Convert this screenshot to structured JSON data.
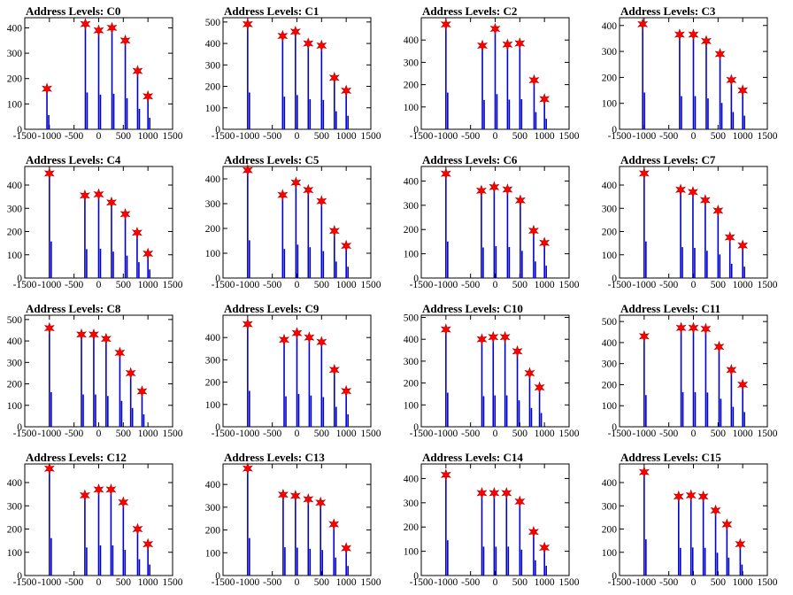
{
  "chart_data": [
    {
      "type": "bar",
      "title": "Address Levels: C0",
      "xlim": [
        -1500,
        1500
      ],
      "ylim": [
        0,
        440
      ],
      "xticks": [
        -1500,
        -1000,
        -500,
        0,
        500,
        1000,
        1500
      ],
      "yticks": [
        0,
        100,
        200,
        300,
        400
      ],
      "tick_labels_x": [
        "-1500",
        "-1000",
        "-500",
        "0",
        "500",
        "1000",
        "1500"
      ],
      "tick_labels_y": [
        "0",
        "100",
        "200",
        "300",
        "400"
      ],
      "peaks": [
        {
          "x": -1050,
          "y": 160
        },
        {
          "x": -270,
          "y": 415
        },
        {
          "x": 0,
          "y": 390
        },
        {
          "x": 270,
          "y": 400
        },
        {
          "x": 540,
          "y": 350
        },
        {
          "x": 790,
          "y": 230
        },
        {
          "x": 1000,
          "y": 130
        }
      ]
    },
    {
      "type": "bar",
      "title": "Address Levels: C1",
      "xlim": [
        -1500,
        1500
      ],
      "ylim": [
        0,
        520
      ],
      "xticks": [
        -1500,
        -1000,
        -500,
        0,
        500,
        1000,
        1500
      ],
      "yticks": [
        0,
        100,
        200,
        300,
        400,
        500
      ],
      "tick_labels_x": [
        "-1500",
        "-1000",
        "-500",
        "0",
        "500",
        "1000",
        "1500"
      ],
      "tick_labels_y": [
        "0",
        "100",
        "200",
        "300",
        "400",
        "500"
      ],
      "peaks": [
        {
          "x": -1000,
          "y": 490
        },
        {
          "x": -290,
          "y": 435
        },
        {
          "x": -30,
          "y": 455
        },
        {
          "x": 230,
          "y": 400
        },
        {
          "x": 500,
          "y": 390
        },
        {
          "x": 760,
          "y": 240
        },
        {
          "x": 1000,
          "y": 180
        }
      ]
    },
    {
      "type": "bar",
      "title": "Address Levels: C2",
      "xlim": [
        -1500,
        1500
      ],
      "ylim": [
        0,
        500
      ],
      "xticks": [
        -1500,
        -1000,
        -500,
        0,
        500,
        1000,
        1500
      ],
      "yticks": [
        0,
        100,
        200,
        300,
        400
      ],
      "tick_labels_x": [
        "-1500",
        "-1000",
        "-500",
        "0",
        "500",
        "1000",
        "1500"
      ],
      "tick_labels_y": [
        "0",
        "100",
        "200",
        "300",
        "400"
      ],
      "peaks": [
        {
          "x": -1000,
          "y": 470
        },
        {
          "x": -260,
          "y": 375
        },
        {
          "x": 0,
          "y": 450
        },
        {
          "x": 250,
          "y": 380
        },
        {
          "x": 500,
          "y": 385
        },
        {
          "x": 790,
          "y": 220
        },
        {
          "x": 1000,
          "y": 135
        }
      ]
    },
    {
      "type": "bar",
      "title": "Address Levels: C3",
      "xlim": [
        -1500,
        1500
      ],
      "ylim": [
        0,
        430
      ],
      "xticks": [
        -1500,
        -1000,
        -500,
        0,
        500,
        1000,
        1500
      ],
      "yticks": [
        0,
        100,
        200,
        300,
        400
      ],
      "tick_labels_x": [
        "-1500",
        "-1000",
        "-500",
        "0",
        "500",
        "1000",
        "1500"
      ],
      "tick_labels_y": [
        "0",
        "100",
        "200",
        "300",
        "400"
      ],
      "peaks": [
        {
          "x": -1030,
          "y": 405
        },
        {
          "x": -280,
          "y": 365
        },
        {
          "x": 0,
          "y": 365
        },
        {
          "x": 260,
          "y": 340
        },
        {
          "x": 540,
          "y": 290
        },
        {
          "x": 770,
          "y": 190
        },
        {
          "x": 1000,
          "y": 150
        }
      ]
    },
    {
      "type": "bar",
      "title": "Address Levels: C4",
      "xlim": [
        -1500,
        1500
      ],
      "ylim": [
        0,
        480
      ],
      "xticks": [
        -1500,
        -1000,
        -500,
        0,
        500,
        1000,
        1500
      ],
      "yticks": [
        0,
        100,
        200,
        300,
        400
      ],
      "tick_labels_x": [
        "-1500",
        "-1000",
        "-500",
        "0",
        "500",
        "1000",
        "1500"
      ],
      "tick_labels_y": [
        "0",
        "100",
        "200",
        "300",
        "400"
      ],
      "peaks": [
        {
          "x": -1000,
          "y": 450
        },
        {
          "x": -280,
          "y": 355
        },
        {
          "x": 0,
          "y": 360
        },
        {
          "x": 260,
          "y": 325
        },
        {
          "x": 540,
          "y": 275
        },
        {
          "x": 780,
          "y": 195
        },
        {
          "x": 1000,
          "y": 105
        }
      ]
    },
    {
      "type": "bar",
      "title": "Address Levels: C5",
      "xlim": [
        -1500,
        1500
      ],
      "ylim": [
        0,
        450
      ],
      "xticks": [
        -1500,
        -1000,
        -500,
        0,
        500,
        1000,
        1500
      ],
      "yticks": [
        0,
        100,
        200,
        300,
        400
      ],
      "tick_labels_x": [
        "-1500",
        "-1000",
        "-500",
        "0",
        "500",
        "1000",
        "1500"
      ],
      "tick_labels_y": [
        "0",
        "100",
        "200",
        "300",
        "400"
      ],
      "peaks": [
        {
          "x": -1000,
          "y": 435
        },
        {
          "x": -290,
          "y": 335
        },
        {
          "x": -20,
          "y": 385
        },
        {
          "x": 230,
          "y": 355
        },
        {
          "x": 500,
          "y": 310
        },
        {
          "x": 760,
          "y": 190
        },
        {
          "x": 1000,
          "y": 130
        }
      ]
    },
    {
      "type": "bar",
      "title": "Address Levels: C6",
      "xlim": [
        -1500,
        1500
      ],
      "ylim": [
        0,
        460
      ],
      "xticks": [
        -1500,
        -1000,
        -500,
        0,
        500,
        1000,
        1500
      ],
      "yticks": [
        0,
        100,
        200,
        300,
        400
      ],
      "tick_labels_x": [
        "-1500",
        "-1000",
        "-500",
        "0",
        "500",
        "1000",
        "1500"
      ],
      "tick_labels_y": [
        "0",
        "100",
        "200",
        "300",
        "400"
      ],
      "peaks": [
        {
          "x": -1000,
          "y": 430
        },
        {
          "x": -280,
          "y": 360
        },
        {
          "x": -20,
          "y": 375
        },
        {
          "x": 250,
          "y": 365
        },
        {
          "x": 510,
          "y": 320
        },
        {
          "x": 780,
          "y": 195
        },
        {
          "x": 1000,
          "y": 145
        }
      ]
    },
    {
      "type": "bar",
      "title": "Address Levels: C7",
      "xlim": [
        -1500,
        1500
      ],
      "ylim": [
        0,
        480
      ],
      "xticks": [
        -1500,
        -1000,
        -500,
        0,
        500,
        1000,
        1500
      ],
      "yticks": [
        0,
        100,
        200,
        300,
        400
      ],
      "tick_labels_x": [
        "-1500",
        "-1000",
        "-500",
        "0",
        "500",
        "1000",
        "1500"
      ],
      "tick_labels_y": [
        "0",
        "100",
        "200",
        "300",
        "400"
      ],
      "peaks": [
        {
          "x": -1000,
          "y": 450
        },
        {
          "x": -260,
          "y": 380
        },
        {
          "x": -10,
          "y": 370
        },
        {
          "x": 240,
          "y": 335
        },
        {
          "x": 500,
          "y": 290
        },
        {
          "x": 740,
          "y": 175
        },
        {
          "x": 1000,
          "y": 140
        }
      ]
    },
    {
      "type": "bar",
      "title": "Address Levels: C8",
      "xlim": [
        -1500,
        1500
      ],
      "ylim": [
        0,
        520
      ],
      "xticks": [
        -1500,
        -1000,
        -500,
        0,
        500,
        1000,
        1500
      ],
      "yticks": [
        0,
        100,
        200,
        300,
        400,
        500
      ],
      "tick_labels_x": [
        "-1500",
        "-1000",
        "-500",
        "0",
        "500",
        "1000",
        "1500"
      ],
      "tick_labels_y": [
        "0",
        "100",
        "200",
        "300",
        "400",
        "500"
      ],
      "peaks": [
        {
          "x": -1000,
          "y": 460
        },
        {
          "x": -350,
          "y": 430
        },
        {
          "x": -100,
          "y": 430
        },
        {
          "x": 150,
          "y": 410
        },
        {
          "x": 430,
          "y": 345
        },
        {
          "x": 650,
          "y": 250
        },
        {
          "x": 880,
          "y": 165
        }
      ]
    },
    {
      "type": "bar",
      "title": "Address Levels: C9",
      "xlim": [
        -1500,
        1500
      ],
      "ylim": [
        0,
        500
      ],
      "xticks": [
        -1500,
        -1000,
        -500,
        0,
        500,
        1000,
        1500
      ],
      "yticks": [
        0,
        100,
        200,
        300,
        400
      ],
      "tick_labels_x": [
        "-1500",
        "-1000",
        "-500",
        "0",
        "500",
        "1000",
        "1500"
      ],
      "tick_labels_y": [
        "0",
        "100",
        "200",
        "300",
        "400"
      ],
      "peaks": [
        {
          "x": -1000,
          "y": 460
        },
        {
          "x": -260,
          "y": 390
        },
        {
          "x": 0,
          "y": 420
        },
        {
          "x": 250,
          "y": 400
        },
        {
          "x": 500,
          "y": 380
        },
        {
          "x": 760,
          "y": 255
        },
        {
          "x": 1000,
          "y": 160
        }
      ]
    },
    {
      "type": "bar",
      "title": "Address Levels: C10",
      "xlim": [
        -1500,
        1500
      ],
      "ylim": [
        0,
        510
      ],
      "xticks": [
        -1500,
        -1000,
        -500,
        0,
        500,
        1000,
        1500
      ],
      "yticks": [
        0,
        100,
        200,
        300,
        400,
        500
      ],
      "tick_labels_x": [
        "-1500",
        "-1000",
        "-500",
        "0",
        "500",
        "1000",
        "1500"
      ],
      "tick_labels_y": [
        "0",
        "100",
        "200",
        "300",
        "400",
        "500"
      ],
      "peaks": [
        {
          "x": -1000,
          "y": 445
        },
        {
          "x": -270,
          "y": 400
        },
        {
          "x": -40,
          "y": 410
        },
        {
          "x": 200,
          "y": 410
        },
        {
          "x": 450,
          "y": 345
        },
        {
          "x": 700,
          "y": 245
        },
        {
          "x": 900,
          "y": 180
        }
      ]
    },
    {
      "type": "bar",
      "title": "Address Levels: C11",
      "xlim": [
        -1500,
        1500
      ],
      "ylim": [
        0,
        530
      ],
      "xticks": [
        -1500,
        -1000,
        -500,
        0,
        500,
        1000,
        1500
      ],
      "yticks": [
        0,
        100,
        200,
        300,
        400,
        500
      ],
      "tick_labels_x": [
        "-1500",
        "-1000",
        "-500",
        "0",
        "500",
        "1000",
        "1500"
      ],
      "tick_labels_y": [
        "0",
        "100",
        "200",
        "300",
        "400",
        "500"
      ],
      "peaks": [
        {
          "x": -1000,
          "y": 430
        },
        {
          "x": -250,
          "y": 470
        },
        {
          "x": 0,
          "y": 470
        },
        {
          "x": 250,
          "y": 465
        },
        {
          "x": 520,
          "y": 380
        },
        {
          "x": 770,
          "y": 270
        },
        {
          "x": 1000,
          "y": 200
        }
      ]
    },
    {
      "type": "bar",
      "title": "Address Levels: C12",
      "xlim": [
        -1500,
        1500
      ],
      "ylim": [
        0,
        480
      ],
      "xticks": [
        -1500,
        -1000,
        -500,
        0,
        500,
        1000,
        1500
      ],
      "yticks": [
        0,
        100,
        200,
        300,
        400
      ],
      "tick_labels_x": [
        "-1500",
        "-1000",
        "-500",
        "0",
        "500",
        "1000",
        "1500"
      ],
      "tick_labels_y": [
        "0",
        "100",
        "200",
        "300",
        "400"
      ],
      "peaks": [
        {
          "x": -1000,
          "y": 460
        },
        {
          "x": -280,
          "y": 345
        },
        {
          "x": 0,
          "y": 370
        },
        {
          "x": 250,
          "y": 370
        },
        {
          "x": 500,
          "y": 315
        },
        {
          "x": 790,
          "y": 200
        },
        {
          "x": 1000,
          "y": 135
        }
      ]
    },
    {
      "type": "bar",
      "title": "Address Levels: C13",
      "xlim": [
        -1500,
        1500
      ],
      "ylim": [
        0,
        490
      ],
      "xticks": [
        -1500,
        -1000,
        -500,
        0,
        500,
        1000,
        1500
      ],
      "yticks": [
        0,
        100,
        200,
        300,
        400
      ],
      "tick_labels_x": [
        "-1500",
        "-1000",
        "-500",
        "0",
        "500",
        "1000",
        "1500"
      ],
      "tick_labels_y": [
        "0",
        "100",
        "200",
        "300",
        "400"
      ],
      "peaks": [
        {
          "x": -1000,
          "y": 470
        },
        {
          "x": -280,
          "y": 355
        },
        {
          "x": -30,
          "y": 350
        },
        {
          "x": 230,
          "y": 335
        },
        {
          "x": 480,
          "y": 320
        },
        {
          "x": 750,
          "y": 225
        },
        {
          "x": 1000,
          "y": 120
        }
      ]
    },
    {
      "type": "bar",
      "title": "Address Levels: C14",
      "xlim": [
        -1500,
        1500
      ],
      "ylim": [
        0,
        460
      ],
      "xticks": [
        -1500,
        -1000,
        -500,
        0,
        500,
        1000,
        1500
      ],
      "yticks": [
        0,
        100,
        200,
        300,
        400
      ],
      "tick_labels_x": [
        "-1500",
        "-1000",
        "-500",
        "0",
        "500",
        "1000",
        "1500"
      ],
      "tick_labels_y": [
        "0",
        "100",
        "200",
        "300",
        "400"
      ],
      "peaks": [
        {
          "x": -1000,
          "y": 415
        },
        {
          "x": -270,
          "y": 340
        },
        {
          "x": -20,
          "y": 340
        },
        {
          "x": 230,
          "y": 340
        },
        {
          "x": 500,
          "y": 305
        },
        {
          "x": 780,
          "y": 180
        },
        {
          "x": 1000,
          "y": 115
        }
      ]
    },
    {
      "type": "bar",
      "title": "Address Levels: C15",
      "xlim": [
        -1500,
        1500
      ],
      "ylim": [
        0,
        480
      ],
      "xticks": [
        -1500,
        -1000,
        -500,
        0,
        500,
        1000,
        1500
      ],
      "yticks": [
        0,
        100,
        200,
        300,
        400
      ],
      "tick_labels_x": [
        "-1500",
        "-1000",
        "-500",
        "0",
        "500",
        "1000",
        "1500"
      ],
      "tick_labels_y": [
        "0",
        "100",
        "200",
        "300",
        "400"
      ],
      "peaks": [
        {
          "x": -1000,
          "y": 445
        },
        {
          "x": -300,
          "y": 340
        },
        {
          "x": -50,
          "y": 345
        },
        {
          "x": 200,
          "y": 340
        },
        {
          "x": 450,
          "y": 280
        },
        {
          "x": 680,
          "y": 220
        },
        {
          "x": 950,
          "y": 135
        }
      ]
    }
  ],
  "colors": {
    "line": "#0000cc",
    "marker": "#ff0000",
    "marker_stroke": "#b00000",
    "frame": "#000000"
  }
}
